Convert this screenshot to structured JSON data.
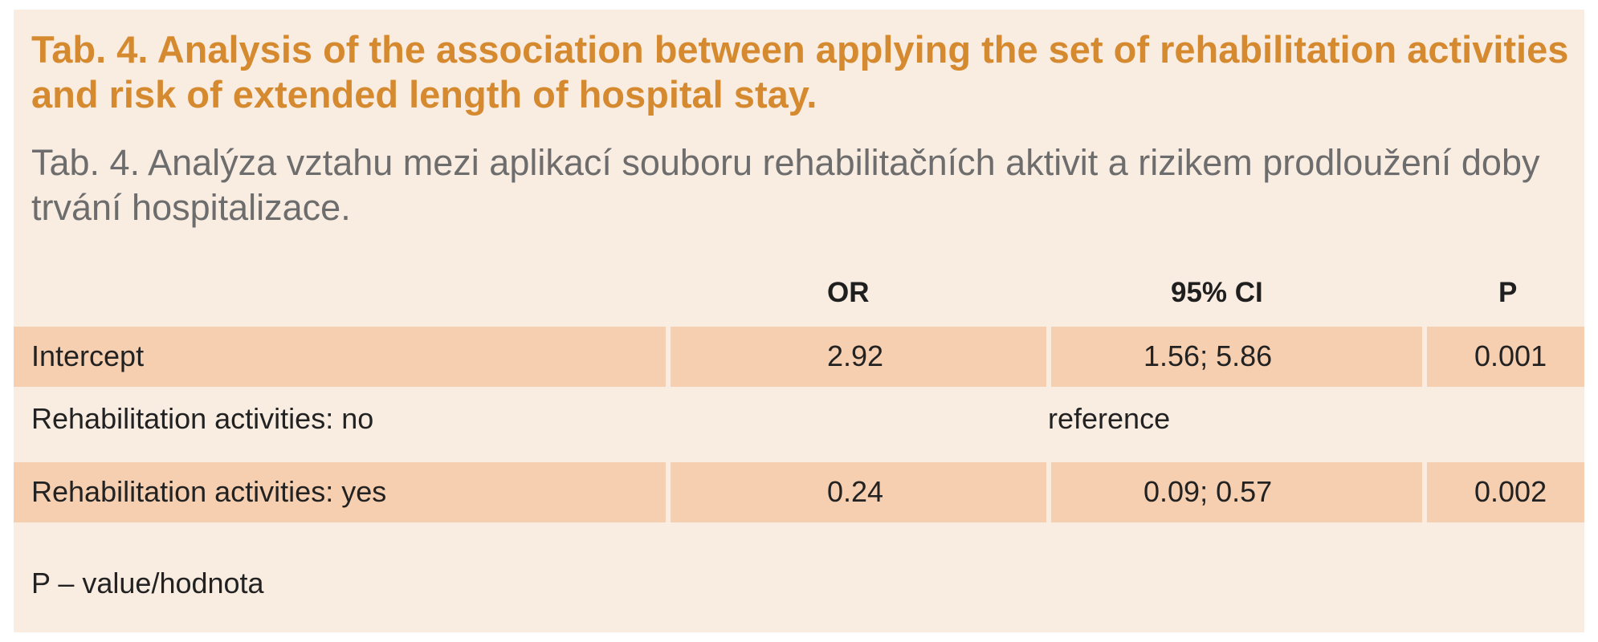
{
  "title": {
    "english": "Tab. 4. Analysis of the association between applying the set of rehabilitation activities and risk of extended length of hospital stay.",
    "czech": "Tab. 4. Analýza vztahu mezi aplikací souboru rehabilitačních aktivit a rizikem prodloužení doby trvání hospitalizace."
  },
  "table": {
    "headers": [
      "",
      "OR",
      "95% CI",
      "P"
    ],
    "rows": [
      {
        "label": "Intercept",
        "or": "2.92",
        "ci": "1.56; 5.86",
        "p": "0.001",
        "shaded": true
      },
      {
        "label": "Rehabilitation activities: no",
        "reference": "reference",
        "shaded": false
      },
      {
        "label": "Rehabilitation activities: yes",
        "or": "0.24",
        "ci": "0.09; 0.57",
        "p": "0.002",
        "shaded": true
      }
    ]
  },
  "footnote": "P – value/hodnota",
  "colors": {
    "panel_background": "#f9ece1",
    "shaded_row": "#f6cfb0",
    "title_accent": "#d68a30",
    "subtitle_gray": "#6d6d6d"
  }
}
